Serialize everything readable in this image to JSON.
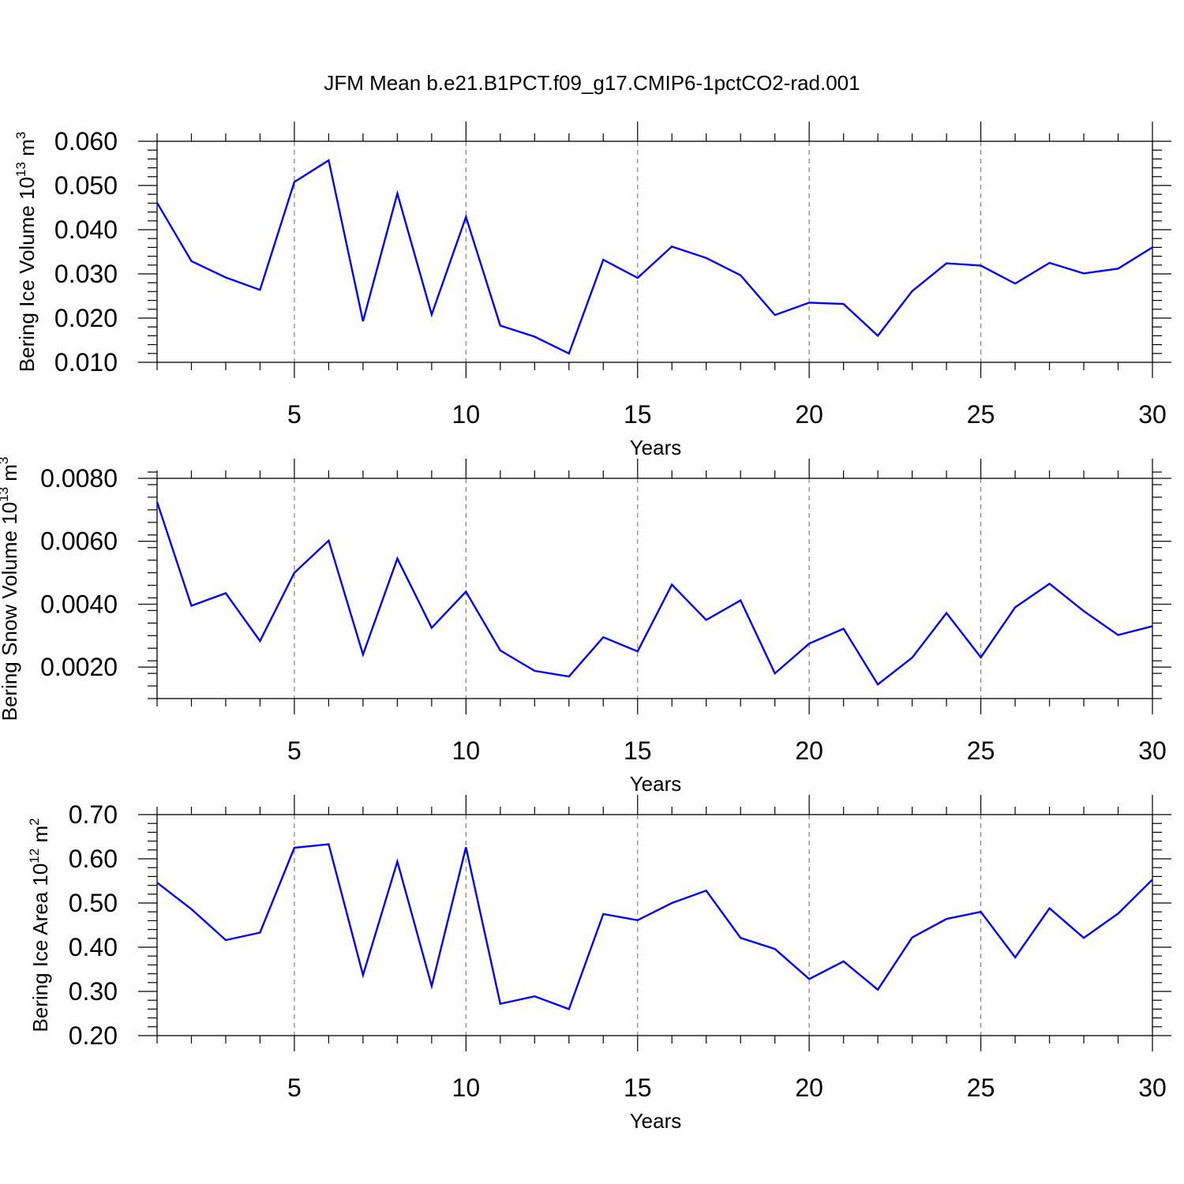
{
  "title": "JFM Mean b.e21.B1PCT.f09_g17.CMIP6-1pctCO2-rad.001",
  "colors": {
    "line": "#0000ff",
    "axis": "#000000",
    "grid": "#808080"
  },
  "chart_data": [
    {
      "type": "line",
      "ylabel_main": "Bering Ice Volume 10",
      "ylabel_exp": "13",
      "ylabel_unit": "m",
      "ylabel_unit_exp": "3",
      "xlabel": "Years",
      "xlim": [
        1,
        30
      ],
      "ylim": [
        0.01,
        0.06
      ],
      "x_ticks": [
        5,
        10,
        15,
        20,
        25,
        30
      ],
      "x_tick_labels": [
        "5",
        "10",
        "15",
        "20",
        "25",
        "30"
      ],
      "y_ticks": [
        0.01,
        0.02,
        0.03,
        0.04,
        0.05,
        0.06
      ],
      "y_tick_labels": [
        "0.010",
        "0.020",
        "0.030",
        "0.040",
        "0.050",
        "0.060"
      ],
      "y_minor_step": 0.002,
      "x": [
        1,
        2,
        3,
        4,
        5,
        6,
        7,
        8,
        9,
        10,
        11,
        12,
        13,
        14,
        15,
        16,
        17,
        18,
        19,
        20,
        21,
        22,
        23,
        24,
        25,
        26,
        27,
        28,
        29,
        30
      ],
      "values": [
        0.0461,
        0.0329,
        0.0292,
        0.0264,
        0.0508,
        0.0557,
        0.0193,
        0.0482,
        0.0208,
        0.0429,
        0.0183,
        0.0158,
        0.012,
        0.0332,
        0.0291,
        0.0362,
        0.0336,
        0.0297,
        0.0207,
        0.0235,
        0.0232,
        0.016,
        0.0261,
        0.0324,
        0.0319,
        0.0278,
        0.0325,
        0.0301,
        0.0312,
        0.036
      ]
    },
    {
      "type": "line",
      "ylabel_main": "Bering Snow Volume 10",
      "ylabel_exp": "13",
      "ylabel_unit": "m",
      "ylabel_unit_exp": "3",
      "xlabel": "Years",
      "xlim": [
        1,
        30
      ],
      "ylim": [
        0.001,
        0.008
      ],
      "x_ticks": [
        5,
        10,
        15,
        20,
        25,
        30
      ],
      "x_tick_labels": [
        "5",
        "10",
        "15",
        "20",
        "25",
        "30"
      ],
      "y_ticks": [
        0.002,
        0.004,
        0.006,
        0.008
      ],
      "y_tick_labels": [
        "0.0020",
        "0.0040",
        "0.0060",
        "0.0080"
      ],
      "y_minor_step": 0.0004,
      "x": [
        1,
        2,
        3,
        4,
        5,
        6,
        7,
        8,
        9,
        10,
        11,
        12,
        13,
        14,
        15,
        16,
        17,
        18,
        19,
        20,
        21,
        22,
        23,
        24,
        25,
        26,
        27,
        28,
        29,
        30
      ],
      "values": [
        0.00725,
        0.00395,
        0.00435,
        0.00283,
        0.005,
        0.00602,
        0.0024,
        0.00545,
        0.00325,
        0.0044,
        0.00253,
        0.00188,
        0.0017,
        0.00295,
        0.0025,
        0.00462,
        0.0035,
        0.00412,
        0.0018,
        0.00275,
        0.00322,
        0.00145,
        0.0023,
        0.00372,
        0.00231,
        0.0039,
        0.00465,
        0.00378,
        0.00302,
        0.0033
      ]
    },
    {
      "type": "line",
      "ylabel_main": "Bering Ice Area 10",
      "ylabel_exp": "12",
      "ylabel_unit": "m",
      "ylabel_unit_exp": "2",
      "xlabel": "Years",
      "xlim": [
        1,
        30
      ],
      "ylim": [
        0.2,
        0.7
      ],
      "x_ticks": [
        5,
        10,
        15,
        20,
        25,
        30
      ],
      "x_tick_labels": [
        "5",
        "10",
        "15",
        "20",
        "25",
        "30"
      ],
      "y_ticks": [
        0.2,
        0.3,
        0.4,
        0.5,
        0.6,
        0.7
      ],
      "y_tick_labels": [
        "0.20",
        "0.30",
        "0.40",
        "0.50",
        "0.60",
        "0.70"
      ],
      "y_minor_step": 0.02,
      "x": [
        1,
        2,
        3,
        4,
        5,
        6,
        7,
        8,
        9,
        10,
        11,
        12,
        13,
        14,
        15,
        16,
        17,
        18,
        19,
        20,
        21,
        22,
        23,
        24,
        25,
        26,
        27,
        28,
        29,
        30
      ],
      "values": [
        0.546,
        0.486,
        0.416,
        0.433,
        0.625,
        0.633,
        0.337,
        0.594,
        0.312,
        0.626,
        0.272,
        0.289,
        0.26,
        0.475,
        0.461,
        0.5,
        0.528,
        0.421,
        0.396,
        0.328,
        0.368,
        0.304,
        0.422,
        0.464,
        0.48,
        0.377,
        0.488,
        0.421,
        0.476,
        0.553
      ]
    }
  ]
}
